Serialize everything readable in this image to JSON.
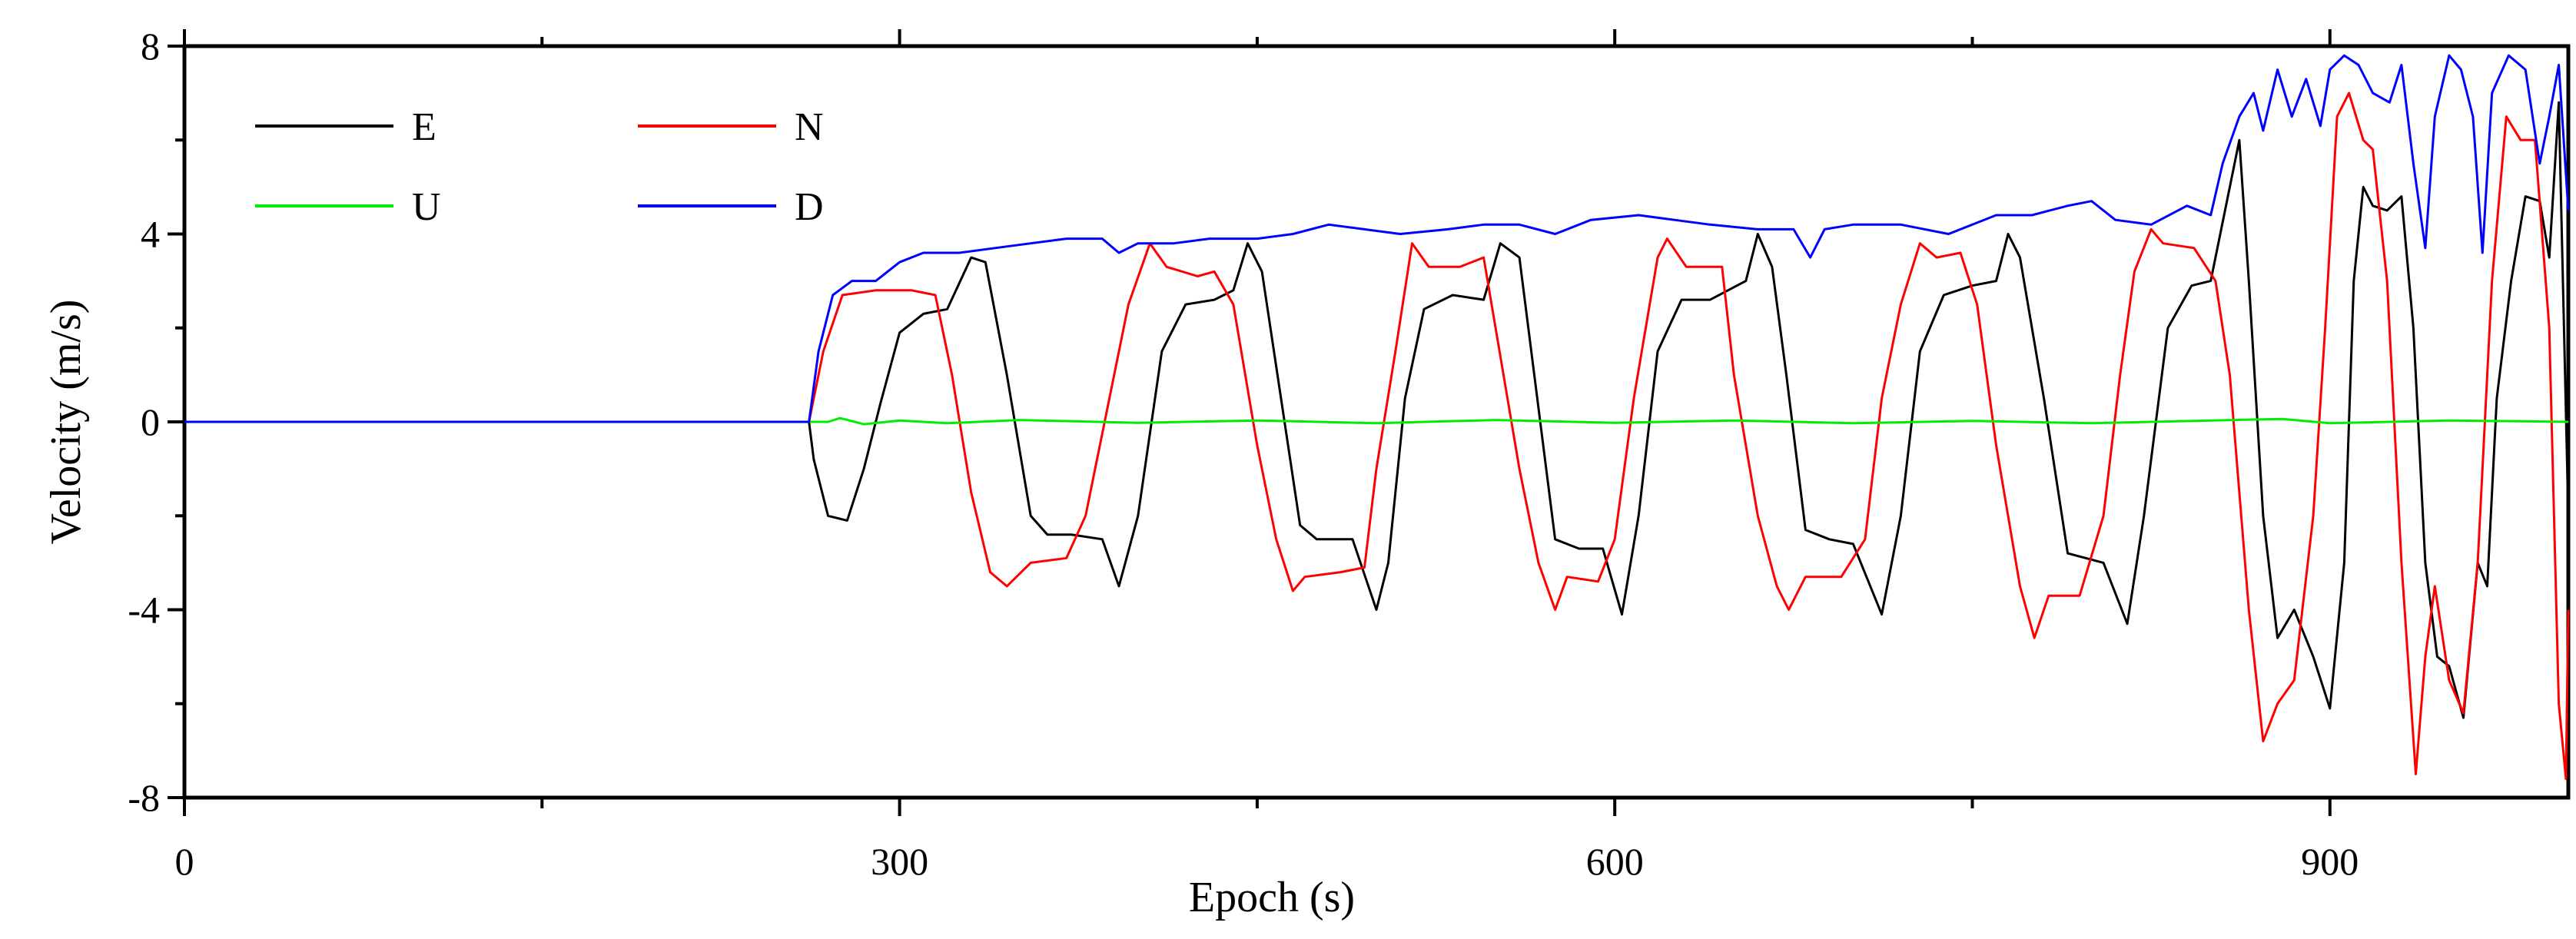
{
  "chart_data": {
    "type": "line",
    "title": "",
    "xlabel": "Epoch (s)",
    "ylabel": "Velocity (m/s)",
    "xlim": [
      0,
      1000
    ],
    "ylim": [
      -8,
      8
    ],
    "x_ticks": [
      0,
      300,
      600,
      900
    ],
    "x_tick_labels": [
      "0",
      "300",
      "600",
      "900"
    ],
    "y_ticks": [
      -8,
      -4,
      0,
      4,
      8
    ],
    "y_tick_labels": [
      "-8",
      "-4",
      "0",
      "4",
      "8"
    ],
    "grid": false,
    "legend_position": "top-left",
    "series": [
      {
        "name": "E",
        "color": "#000000",
        "points": [
          [
            0,
            0
          ],
          [
            262,
            0
          ],
          [
            264,
            -0.8
          ],
          [
            270,
            -2.0
          ],
          [
            278,
            -2.1
          ],
          [
            285,
            -1.0
          ],
          [
            292,
            0.4
          ],
          [
            300,
            1.9
          ],
          [
            310,
            2.3
          ],
          [
            320,
            2.4
          ],
          [
            330,
            3.5
          ],
          [
            336,
            3.4
          ],
          [
            345,
            1.0
          ],
          [
            355,
            -2.0
          ],
          [
            362,
            -2.4
          ],
          [
            372,
            -2.4
          ],
          [
            385,
            -2.5
          ],
          [
            392,
            -3.5
          ],
          [
            400,
            -2.0
          ],
          [
            410,
            1.5
          ],
          [
            420,
            2.5
          ],
          [
            432,
            2.6
          ],
          [
            440,
            2.8
          ],
          [
            446,
            3.8
          ],
          [
            452,
            3.2
          ],
          [
            460,
            0.5
          ],
          [
            468,
            -2.2
          ],
          [
            475,
            -2.5
          ],
          [
            490,
            -2.5
          ],
          [
            500,
            -4.0
          ],
          [
            505,
            -3.0
          ],
          [
            512,
            0.5
          ],
          [
            520,
            2.4
          ],
          [
            532,
            2.7
          ],
          [
            545,
            2.6
          ],
          [
            552,
            3.8
          ],
          [
            560,
            3.5
          ],
          [
            565,
            1.5
          ],
          [
            575,
            -2.5
          ],
          [
            585,
            -2.7
          ],
          [
            595,
            -2.7
          ],
          [
            603,
            -4.1
          ],
          [
            610,
            -2.0
          ],
          [
            618,
            1.5
          ],
          [
            628,
            2.6
          ],
          [
            640,
            2.6
          ],
          [
            655,
            3.0
          ],
          [
            660,
            4.0
          ],
          [
            666,
            3.3
          ],
          [
            672,
            1.0
          ],
          [
            680,
            -2.3
          ],
          [
            690,
            -2.5
          ],
          [
            700,
            -2.6
          ],
          [
            712,
            -4.1
          ],
          [
            720,
            -2.0
          ],
          [
            728,
            1.5
          ],
          [
            738,
            2.7
          ],
          [
            750,
            2.9
          ],
          [
            760,
            3.0
          ],
          [
            765,
            4.0
          ],
          [
            770,
            3.5
          ],
          [
            780,
            0.5
          ],
          [
            790,
            -2.8
          ],
          [
            805,
            -3.0
          ],
          [
            815,
            -4.3
          ],
          [
            822,
            -2.0
          ],
          [
            832,
            2.0
          ],
          [
            842,
            2.9
          ],
          [
            850,
            3.0
          ],
          [
            858,
            5.0
          ],
          [
            862,
            6.0
          ],
          [
            866,
            3.0
          ],
          [
            872,
            -2.0
          ],
          [
            878,
            -4.6
          ],
          [
            885,
            -4.0
          ],
          [
            893,
            -5.0
          ],
          [
            900,
            -6.1
          ],
          [
            906,
            -3.0
          ],
          [
            910,
            3.0
          ],
          [
            914,
            5.0
          ],
          [
            918,
            4.6
          ],
          [
            924,
            4.5
          ],
          [
            930,
            4.8
          ],
          [
            935,
            2.0
          ],
          [
            940,
            -3.0
          ],
          [
            945,
            -5.0
          ],
          [
            950,
            -5.2
          ],
          [
            956,
            -6.3
          ],
          [
            962,
            -3.0
          ],
          [
            966,
            -3.5
          ],
          [
            970,
            0.5
          ],
          [
            976,
            3.0
          ],
          [
            982,
            4.8
          ],
          [
            988,
            4.7
          ],
          [
            992,
            3.5
          ],
          [
            996,
            6.8
          ],
          [
            1000,
            -2.0
          ]
        ]
      },
      {
        "name": "N",
        "color": "#ff0000",
        "points": [
          [
            0,
            0
          ],
          [
            262,
            0
          ],
          [
            268,
            1.5
          ],
          [
            276,
            2.7
          ],
          [
            290,
            2.8
          ],
          [
            305,
            2.8
          ],
          [
            315,
            2.7
          ],
          [
            322,
            1.0
          ],
          [
            330,
            -1.5
          ],
          [
            338,
            -3.2
          ],
          [
            345,
            -3.5
          ],
          [
            355,
            -3.0
          ],
          [
            370,
            -2.9
          ],
          [
            378,
            -2.0
          ],
          [
            388,
            0.5
          ],
          [
            396,
            2.5
          ],
          [
            405,
            3.8
          ],
          [
            412,
            3.3
          ],
          [
            425,
            3.1
          ],
          [
            432,
            3.2
          ],
          [
            440,
            2.5
          ],
          [
            450,
            -0.5
          ],
          [
            458,
            -2.5
          ],
          [
            465,
            -3.6
          ],
          [
            470,
            -3.3
          ],
          [
            485,
            -3.2
          ],
          [
            495,
            -3.1
          ],
          [
            500,
            -1.0
          ],
          [
            508,
            1.5
          ],
          [
            515,
            3.8
          ],
          [
            522,
            3.3
          ],
          [
            535,
            3.3
          ],
          [
            545,
            3.5
          ],
          [
            550,
            2.0
          ],
          [
            560,
            -1.0
          ],
          [
            568,
            -3.0
          ],
          [
            575,
            -4.0
          ],
          [
            580,
            -3.3
          ],
          [
            593,
            -3.4
          ],
          [
            600,
            -2.5
          ],
          [
            608,
            0.5
          ],
          [
            618,
            3.5
          ],
          [
            622,
            3.9
          ],
          [
            630,
            3.3
          ],
          [
            645,
            3.3
          ],
          [
            650,
            1.0
          ],
          [
            660,
            -2.0
          ],
          [
            668,
            -3.5
          ],
          [
            673,
            -4.0
          ],
          [
            680,
            -3.3
          ],
          [
            695,
            -3.3
          ],
          [
            705,
            -2.5
          ],
          [
            712,
            0.5
          ],
          [
            720,
            2.5
          ],
          [
            728,
            3.8
          ],
          [
            735,
            3.5
          ],
          [
            745,
            3.6
          ],
          [
            752,
            2.5
          ],
          [
            760,
            -0.5
          ],
          [
            770,
            -3.5
          ],
          [
            776,
            -4.6
          ],
          [
            782,
            -3.7
          ],
          [
            795,
            -3.7
          ],
          [
            805,
            -2.0
          ],
          [
            812,
            1.0
          ],
          [
            818,
            3.2
          ],
          [
            825,
            4.1
          ],
          [
            830,
            3.8
          ],
          [
            843,
            3.7
          ],
          [
            852,
            3.0
          ],
          [
            858,
            1.0
          ],
          [
            866,
            -4.0
          ],
          [
            872,
            -6.8
          ],
          [
            878,
            -6.0
          ],
          [
            885,
            -5.5
          ],
          [
            893,
            -2.0
          ],
          [
            898,
            2.0
          ],
          [
            903,
            6.5
          ],
          [
            908,
            7.0
          ],
          [
            914,
            6.0
          ],
          [
            918,
            5.8
          ],
          [
            924,
            3.0
          ],
          [
            930,
            -3.0
          ],
          [
            936,
            -7.5
          ],
          [
            940,
            -5.0
          ],
          [
            944,
            -3.5
          ],
          [
            950,
            -5.5
          ],
          [
            956,
            -6.2
          ],
          [
            962,
            -3.0
          ],
          [
            968,
            3.0
          ],
          [
            974,
            6.5
          ],
          [
            980,
            6.0
          ],
          [
            986,
            6.0
          ],
          [
            992,
            2.0
          ],
          [
            996,
            -6.0
          ],
          [
            999,
            -7.6
          ],
          [
            1000,
            -4.0
          ]
        ]
      },
      {
        "name": "U",
        "color": "#00ee00",
        "points": [
          [
            0,
            0
          ],
          [
            270,
            0
          ],
          [
            275,
            0.08
          ],
          [
            285,
            -0.05
          ],
          [
            300,
            0.03
          ],
          [
            320,
            -0.03
          ],
          [
            350,
            0.04
          ],
          [
            400,
            -0.02
          ],
          [
            450,
            0.03
          ],
          [
            500,
            -0.03
          ],
          [
            550,
            0.04
          ],
          [
            600,
            -0.02
          ],
          [
            650,
            0.03
          ],
          [
            700,
            -0.03
          ],
          [
            750,
            0.02
          ],
          [
            800,
            -0.03
          ],
          [
            850,
            0.03
          ],
          [
            880,
            0.06
          ],
          [
            900,
            -0.03
          ],
          [
            950,
            0.03
          ],
          [
            1000,
            0
          ]
        ]
      },
      {
        "name": "D",
        "color": "#0000ff",
        "points": [
          [
            0,
            0
          ],
          [
            262,
            0
          ],
          [
            266,
            1.5
          ],
          [
            272,
            2.7
          ],
          [
            280,
            3.0
          ],
          [
            290,
            3.0
          ],
          [
            300,
            3.4
          ],
          [
            310,
            3.6
          ],
          [
            325,
            3.6
          ],
          [
            340,
            3.7
          ],
          [
            355,
            3.8
          ],
          [
            370,
            3.9
          ],
          [
            385,
            3.9
          ],
          [
            392,
            3.6
          ],
          [
            400,
            3.8
          ],
          [
            415,
            3.8
          ],
          [
            430,
            3.9
          ],
          [
            450,
            3.9
          ],
          [
            465,
            4.0
          ],
          [
            480,
            4.2
          ],
          [
            495,
            4.1
          ],
          [
            510,
            4.0
          ],
          [
            530,
            4.1
          ],
          [
            545,
            4.2
          ],
          [
            560,
            4.2
          ],
          [
            575,
            4.0
          ],
          [
            590,
            4.3
          ],
          [
            610,
            4.4
          ],
          [
            625,
            4.3
          ],
          [
            640,
            4.2
          ],
          [
            660,
            4.1
          ],
          [
            675,
            4.1
          ],
          [
            682,
            3.5
          ],
          [
            688,
            4.1
          ],
          [
            700,
            4.2
          ],
          [
            720,
            4.2
          ],
          [
            740,
            4.0
          ],
          [
            760,
            4.4
          ],
          [
            775,
            4.4
          ],
          [
            790,
            4.6
          ],
          [
            800,
            4.7
          ],
          [
            810,
            4.3
          ],
          [
            825,
            4.2
          ],
          [
            840,
            4.6
          ],
          [
            850,
            4.4
          ],
          [
            855,
            5.5
          ],
          [
            862,
            6.5
          ],
          [
            868,
            7.0
          ],
          [
            872,
            6.2
          ],
          [
            878,
            7.5
          ],
          [
            884,
            6.5
          ],
          [
            890,
            7.3
          ],
          [
            896,
            6.3
          ],
          [
            900,
            7.5
          ],
          [
            906,
            7.8
          ],
          [
            912,
            7.6
          ],
          [
            918,
            7.0
          ],
          [
            925,
            6.8
          ],
          [
            930,
            7.6
          ],
          [
            935,
            5.5
          ],
          [
            940,
            3.7
          ],
          [
            944,
            6.5
          ],
          [
            950,
            7.8
          ],
          [
            955,
            7.5
          ],
          [
            960,
            6.5
          ],
          [
            964,
            3.6
          ],
          [
            968,
            7.0
          ],
          [
            975,
            7.8
          ],
          [
            982,
            7.5
          ],
          [
            988,
            5.5
          ],
          [
            992,
            6.5
          ],
          [
            996,
            7.6
          ],
          [
            1000,
            4.5
          ]
        ]
      }
    ]
  }
}
